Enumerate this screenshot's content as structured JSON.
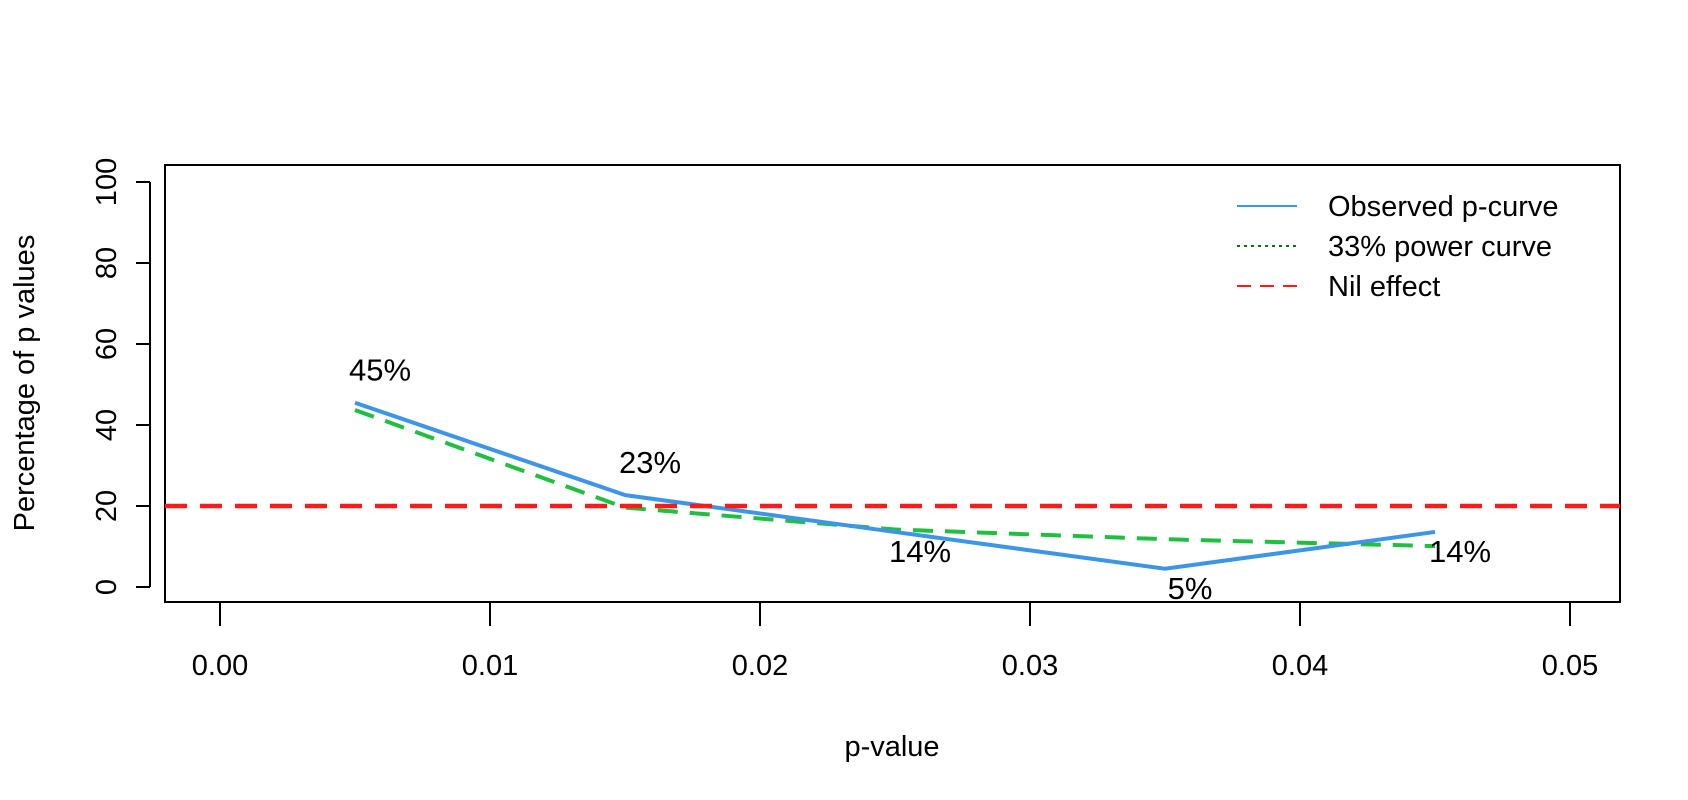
{
  "chart_data": {
    "type": "line",
    "title": "",
    "xlabel": "p-value",
    "ylabel": "Percentage of p values",
    "xlim": [
      0,
      0.05
    ],
    "ylim": [
      0,
      100
    ],
    "x_ticks": [
      "0.00",
      "0.01",
      "0.02",
      "0.03",
      "0.04",
      "0.05"
    ],
    "y_ticks": [
      "0",
      "20",
      "40",
      "60",
      "80",
      "100"
    ],
    "x": [
      0.005,
      0.015,
      0.025,
      0.035,
      0.045
    ],
    "series": [
      {
        "name": "Observed p-curve",
        "values": [
          45.5,
          22.7,
          13.6,
          4.5,
          13.6
        ],
        "color": "#3d95e6",
        "style": "solid"
      },
      {
        "name": "33% power curve",
        "values": [
          43.7,
          19.6,
          14.2,
          11.8,
          10.1
        ],
        "color": "#1fbf3f",
        "style": "dashed"
      },
      {
        "name": "Nil effect",
        "values": [
          20,
          20,
          20,
          20,
          20
        ],
        "color": "#ff1a1a",
        "style": "dashed"
      }
    ],
    "data_labels": [
      "45%",
      "23%",
      "14%",
      "5%",
      "14%"
    ],
    "legend": {
      "position": "top-right",
      "items": [
        {
          "label": "Observed p-curve",
          "color": "#3d95e6",
          "style": "solid"
        },
        {
          "label": "33% power curve",
          "color": "#0a6e1e",
          "style": "dotted"
        },
        {
          "label": "Nil effect",
          "color": "#ff1a1a",
          "style": "dashed"
        }
      ]
    },
    "grid": false
  }
}
